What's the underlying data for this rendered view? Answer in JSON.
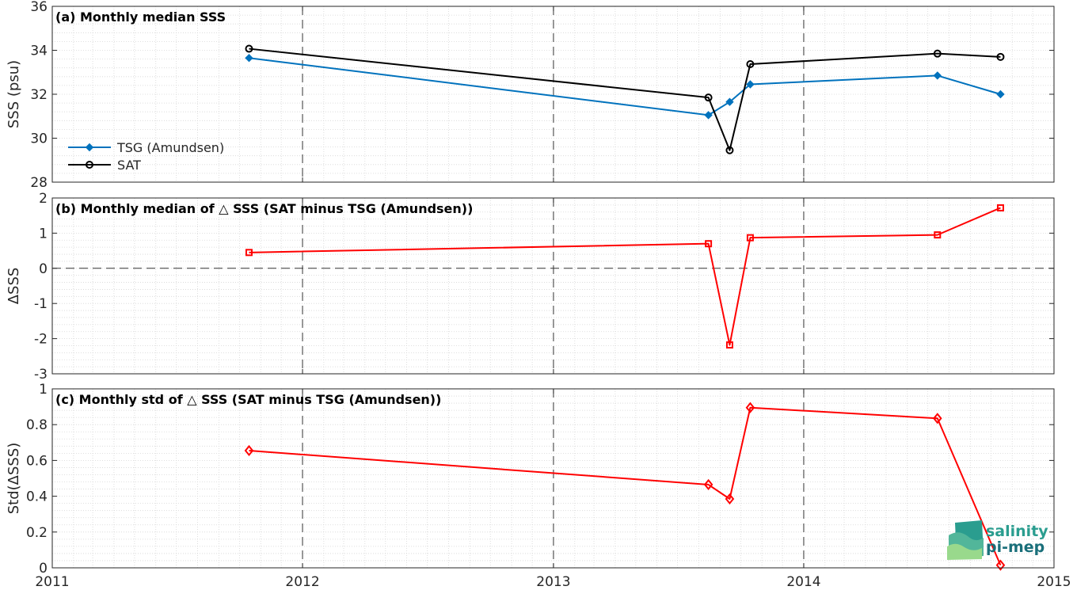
{
  "chart_data": [
    {
      "type": "line",
      "panel": "a",
      "title": "(a) Monthly median SSS",
      "ylabel": "SSS (psu)",
      "xlim": [
        "2011-01-01",
        "2015-01-01"
      ],
      "ylim": [
        28,
        36
      ],
      "yticks": [
        28,
        30,
        32,
        34,
        36
      ],
      "grid": true,
      "legend_position": "lower-left",
      "series": [
        {
          "name": "TSG (Amundsen)",
          "color": "#0072BD",
          "marker": "diamond-filled",
          "x": [
            "2011-10-15",
            "2013-08-15",
            "2013-09-15",
            "2013-10-15",
            "2014-07-15",
            "2014-10-15"
          ],
          "y": [
            33.65,
            31.05,
            31.65,
            32.45,
            32.85,
            32.0
          ]
        },
        {
          "name": "SAT",
          "color": "#000000",
          "marker": "circle-open",
          "x": [
            "2011-10-15",
            "2013-08-15",
            "2013-09-15",
            "2013-10-15",
            "2014-07-15",
            "2014-10-15"
          ],
          "y": [
            34.07,
            31.85,
            29.45,
            33.37,
            33.85,
            33.7
          ]
        }
      ]
    },
    {
      "type": "line",
      "panel": "b",
      "title": "(b) Monthly median of △ SSS (SAT minus TSG (Amundsen))",
      "ylabel": "ΔSSS",
      "xlim": [
        "2011-01-01",
        "2015-01-01"
      ],
      "ylim": [
        -3,
        2
      ],
      "yticks": [
        -3,
        -2,
        -1,
        0,
        1,
        2
      ],
      "grid": true,
      "zero_line": true,
      "series": [
        {
          "color": "#FF0000",
          "marker": "square",
          "x": [
            "2011-10-15",
            "2013-08-15",
            "2013-09-15",
            "2013-10-15",
            "2014-07-15",
            "2014-10-15"
          ],
          "y": [
            0.45,
            0.7,
            -2.18,
            0.87,
            0.95,
            1.72
          ]
        }
      ]
    },
    {
      "type": "line",
      "panel": "c",
      "title": "(c) Monthly std of △ SSS (SAT minus TSG (Amundsen))",
      "ylabel": "Std(ΔSSS)",
      "xlim": [
        "2011-01-01",
        "2015-01-01"
      ],
      "ylim": [
        0,
        1
      ],
      "yticks": [
        0,
        0.2,
        0.4,
        0.6,
        0.8,
        1
      ],
      "ytick_labels": [
        "0",
        "0.2",
        "0.4",
        "0.6",
        "0.8",
        "1"
      ],
      "xticks": [
        "2011",
        "2012",
        "2013",
        "2014",
        "2015"
      ],
      "grid": true,
      "series": [
        {
          "color": "#FF0000",
          "marker": "diamond-open",
          "x": [
            "2011-10-15",
            "2013-08-15",
            "2013-09-15",
            "2013-10-15",
            "2014-07-15",
            "2014-10-15"
          ],
          "y": [
            0.655,
            0.465,
            0.385,
            0.895,
            0.835,
            0.015
          ]
        }
      ]
    }
  ],
  "logo": {
    "line1": "salinity",
    "line2": "pi-mep"
  }
}
